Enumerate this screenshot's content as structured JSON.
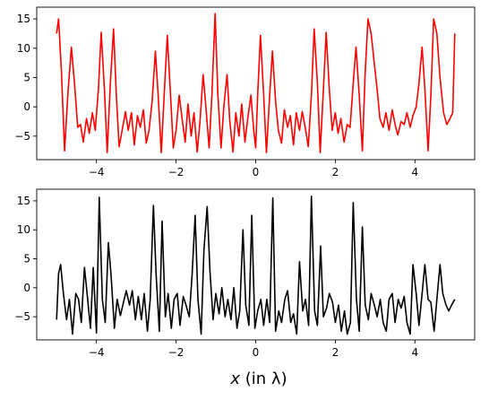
{
  "chart_data": [
    {
      "type": "line",
      "color": "#ff0000",
      "xlim": [
        -5.5,
        5.5
      ],
      "ylim": [
        -9,
        17
      ],
      "xticks": [
        -4,
        -2,
        0,
        2,
        4
      ],
      "yticks": [
        -5,
        0,
        5,
        10,
        15
      ],
      "xtick_labels": [
        "−4",
        "−2",
        "0",
        "2",
        "4"
      ],
      "ytick_labels": [
        "−5",
        "0",
        "5",
        "10",
        "15"
      ],
      "series": [
        {
          "x": [
            -5,
            -4.95,
            -4.88,
            -4.8,
            -4.72,
            -4.63,
            -4.55,
            -4.47,
            -4.4,
            -4.33,
            -4.25,
            -4.18,
            -4.1,
            -4.03,
            -3.95,
            -3.88,
            -3.8,
            -3.73,
            -3.65,
            -3.57,
            -3.5,
            -3.43,
            -3.35,
            -3.27,
            -3.2,
            -3.12,
            -3.05,
            -2.97,
            -2.9,
            -2.82,
            -2.75,
            -2.68,
            -2.6,
            -2.52,
            -2.45,
            -2.37,
            -2.3,
            -2.22,
            -2.14,
            -2.07,
            -2.0,
            -1.92,
            -1.85,
            -1.77,
            -1.7,
            -1.62,
            -1.55,
            -1.47,
            -1.4,
            -1.32,
            -1.25,
            -1.17,
            -1.1,
            -1.02,
            -0.95,
            -0.87,
            -0.8,
            -0.72,
            -0.65,
            -0.57,
            -0.5,
            -0.42,
            -0.35,
            -0.27,
            -0.2,
            -0.12,
            -0.05,
            0.0,
            0.05,
            0.12,
            0.2,
            0.27,
            0.35,
            0.42,
            0.5,
            0.57,
            0.65,
            0.72,
            0.8,
            0.87,
            0.95,
            1.02,
            1.1,
            1.17,
            1.25,
            1.32,
            1.4,
            1.47,
            1.55,
            1.62,
            1.7,
            1.77,
            1.85,
            1.92,
            2.0,
            2.07,
            2.14,
            2.22,
            2.3,
            2.37,
            2.45,
            2.52,
            2.6,
            2.68,
            2.75,
            2.82,
            2.9,
            2.97,
            3.05,
            3.12,
            3.2,
            3.27,
            3.35,
            3.43,
            3.5,
            3.57,
            3.65,
            3.73,
            3.8,
            3.88,
            3.95,
            4.03,
            4.1,
            4.18,
            4.25,
            4.33,
            4.4,
            4.47,
            4.55,
            4.63,
            4.72,
            4.8,
            4.88,
            4.95,
            5.0
          ],
          "y": [
            12.5,
            15.0,
            6.0,
            -7.5,
            2.0,
            10.2,
            4.0,
            -3.5,
            -3.0,
            -6.0,
            -2.0,
            -4.5,
            -1.0,
            -4.0,
            3.0,
            12.7,
            3.0,
            -7.8,
            4.0,
            13.3,
            2.0,
            -6.8,
            -3.8,
            -0.8,
            -4.0,
            -1.0,
            -6.5,
            -1.5,
            -3.5,
            -0.5,
            -6.2,
            -4.0,
            1.0,
            9.5,
            2.0,
            -7.8,
            2.0,
            12.2,
            2.0,
            -7.0,
            -4.0,
            2.0,
            -2.0,
            -6.0,
            0.5,
            -5.0,
            -1.0,
            -7.7,
            -2.5,
            5.5,
            0.0,
            -7.0,
            2.0,
            15.9,
            2.0,
            -7.0,
            0.0,
            5.5,
            -2.5,
            -7.7,
            -1.0,
            -5.0,
            0.5,
            -6.0,
            -2.0,
            2.0,
            -4.0,
            -7.0,
            2.0,
            12.2,
            2.0,
            -7.8,
            2.0,
            9.5,
            1.0,
            -4.0,
            -6.2,
            -0.5,
            -3.5,
            -1.5,
            -6.5,
            -1.0,
            -4.0,
            -0.8,
            -3.8,
            -6.8,
            2.0,
            13.3,
            4.0,
            -7.8,
            3.0,
            12.7,
            3.0,
            -4.0,
            -1.0,
            -4.5,
            -2.0,
            -6.0,
            -3.0,
            -3.5,
            4.0,
            10.2,
            2.0,
            -7.5,
            6.0,
            15.0,
            12.5,
            8.0,
            3.0,
            -2.0,
            -3.5,
            -1.0,
            -4.0,
            -0.5,
            -3.0,
            -4.8,
            -2.5,
            -3.0,
            -1.0,
            -3.5,
            -1.5,
            0.0,
            4.0,
            10.2,
            3.0,
            -7.5,
            2.0,
            15.0,
            12.5,
            5.0,
            -1.0,
            -3.0,
            -2.0,
            -1.0,
            12.5
          ]
        }
      ]
    },
    {
      "type": "line",
      "color": "#000000",
      "xlim": [
        -5.5,
        5.5
      ],
      "ylim": [
        -9,
        17
      ],
      "xlabel_var": "x",
      "xlabel_rest": " (in λ)",
      "xticks": [
        -4,
        -2,
        0,
        2,
        4
      ],
      "yticks": [
        -5,
        0,
        5,
        10,
        15
      ],
      "xtick_labels": [
        "−4",
        "−2",
        "0",
        "2",
        "4"
      ],
      "ytick_labels": [
        "−5",
        "0",
        "5",
        "10",
        "15"
      ],
      "series": [
        {
          "x": [
            -5,
            -4.95,
            -4.9,
            -4.83,
            -4.75,
            -4.68,
            -4.6,
            -4.52,
            -4.45,
            -4.38,
            -4.3,
            -4.22,
            -4.15,
            -4.08,
            -4.0,
            -3.93,
            -3.85,
            -3.78,
            -3.7,
            -3.63,
            -3.55,
            -3.48,
            -3.4,
            -3.32,
            -3.25,
            -3.17,
            -3.1,
            -3.02,
            -2.95,
            -2.87,
            -2.8,
            -2.72,
            -2.65,
            -2.57,
            -2.5,
            -2.42,
            -2.35,
            -2.27,
            -2.2,
            -2.12,
            -2.05,
            -1.97,
            -1.9,
            -1.82,
            -1.75,
            -1.67,
            -1.6,
            -1.52,
            -1.45,
            -1.37,
            -1.3,
            -1.22,
            -1.15,
            -1.07,
            -1.0,
            -0.92,
            -0.85,
            -0.77,
            -0.7,
            -0.62,
            -0.55,
            -0.47,
            -0.4,
            -0.32,
            -0.25,
            -0.17,
            -0.1,
            -0.02,
            0.05,
            0.13,
            0.2,
            0.28,
            0.35,
            0.43,
            0.5,
            0.58,
            0.65,
            0.73,
            0.8,
            0.88,
            0.95,
            1.03,
            1.1,
            1.18,
            1.25,
            1.33,
            1.4,
            1.48,
            1.55,
            1.63,
            1.7,
            1.78,
            1.85,
            1.93,
            2.0,
            2.08,
            2.15,
            2.23,
            2.3,
            2.38,
            2.45,
            2.53,
            2.6,
            2.68,
            2.75,
            2.83,
            2.9,
            2.98,
            3.05,
            3.13,
            3.2,
            3.28,
            3.35,
            3.43,
            3.5,
            3.58,
            3.65,
            3.73,
            3.8,
            3.88,
            3.95,
            4.03,
            4.1,
            4.18,
            4.25,
            4.33,
            4.4,
            4.48,
            4.55,
            4.63,
            4.7,
            4.78,
            4.85,
            4.92,
            5.0
          ],
          "y": [
            -5.5,
            2.5,
            4.0,
            -1.0,
            -5.5,
            -2.0,
            -8.0,
            -1.0,
            -2.0,
            -6.0,
            3.5,
            -2.0,
            -7.0,
            3.5,
            -7.8,
            15.6,
            -2.0,
            -6.0,
            7.8,
            2.0,
            -7.0,
            -2.0,
            -4.8,
            -2.5,
            -0.5,
            -3.0,
            -0.5,
            -5.5,
            -1.5,
            -5.5,
            -1.0,
            -7.5,
            -2.0,
            14.2,
            2.0,
            -7.5,
            11.5,
            -5.0,
            -1.0,
            -7.0,
            -2.0,
            -1.0,
            -6.5,
            -1.5,
            -3.0,
            -5.0,
            2.0,
            12.5,
            -2.0,
            -8.0,
            6.5,
            14.0,
            3.0,
            -5.5,
            -1.0,
            -4.5,
            0.0,
            -5.0,
            -2.0,
            -5.5,
            0.0,
            -7.0,
            -4.0,
            10.0,
            -3.0,
            -6.5,
            12.5,
            -7.0,
            -4.0,
            -2.0,
            -6.5,
            -2.0,
            -6.0,
            15.5,
            -7.5,
            -4.0,
            -6.0,
            -2.0,
            -0.5,
            -6.0,
            -4.5,
            -8.0,
            4.5,
            -4.0,
            -2.0,
            -6.5,
            15.8,
            -4.0,
            -6.5,
            7.2,
            -5.0,
            -3.5,
            -1.0,
            -2.5,
            -6.0,
            -3.0,
            -7.5,
            -4.0,
            -8.0,
            -6.0,
            14.7,
            -2.0,
            -7.5,
            10.5,
            -3.0,
            -5.5,
            -1.0,
            -3.0,
            -5.0,
            -2.0,
            -6.0,
            -7.5,
            -2.0,
            -1.0,
            -6.0,
            -2.0,
            -3.5,
            -1.5,
            -6.0,
            -8.0,
            4.0,
            -1.0,
            -6.5,
            -1.0,
            4.0,
            -2.0,
            -2.5,
            -7.5,
            -2.0,
            4.0,
            -1.0,
            -3.0,
            -4.0,
            -3.0,
            -2.0
          ]
        }
      ]
    }
  ]
}
